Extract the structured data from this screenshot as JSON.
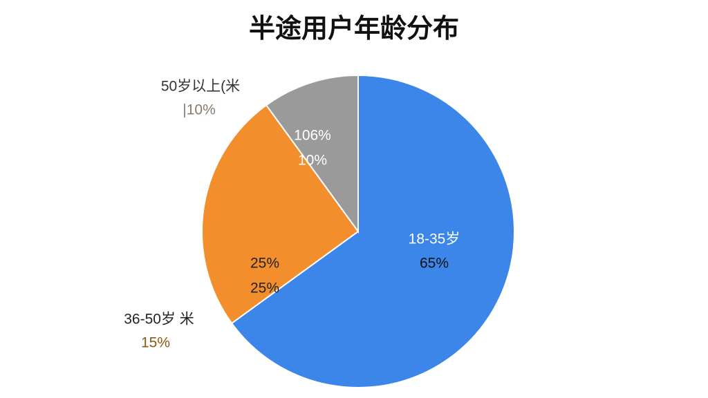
{
  "chart_data": {
    "type": "pie",
    "title": "半途用户年龄分布",
    "categories": [
      "18-35岁",
      "36-50岁 米",
      "50岁以上(米"
    ],
    "values": [
      65,
      25,
      10
    ],
    "value_labels": [
      "65%",
      "25%",
      "10%"
    ],
    "colors": [
      "#3b86e8",
      "#f28e2c",
      "#9a9a9a"
    ],
    "annotations": [
      "25%",
      "106%",
      "|10%",
      "15%"
    ]
  }
}
